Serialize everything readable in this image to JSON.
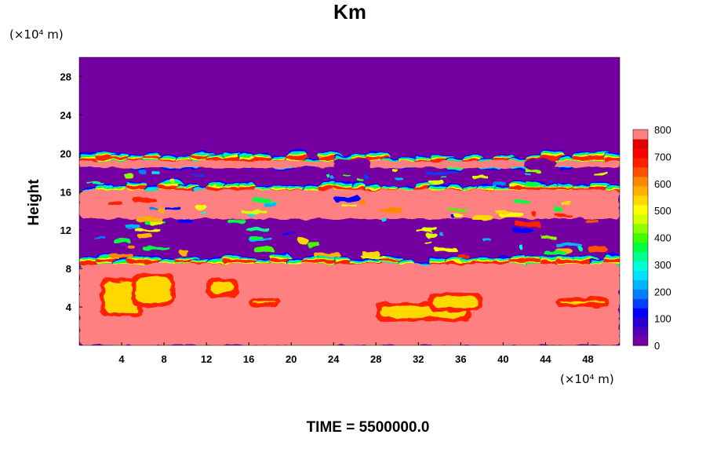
{
  "chart_data": {
    "type": "heatmap",
    "title": "Km",
    "ylabel": "Height",
    "x_unit": "(×10⁴ m)",
    "y_unit": "(×10⁴ m)",
    "footer": "TIME = 5500000.0",
    "xlim": [
      0,
      51
    ],
    "ylim": [
      0,
      30
    ],
    "x_ticks": [
      4,
      8,
      12,
      16,
      20,
      24,
      28,
      32,
      36,
      40,
      44,
      48
    ],
    "y_ticks": [
      4,
      8,
      12,
      16,
      20,
      24,
      28
    ],
    "colorbar": {
      "min": 0,
      "max": 800,
      "ticks": [
        0,
        100,
        200,
        300,
        400,
        500,
        600,
        700,
        800
      ],
      "colors": [
        "#7400a2",
        "#5000b8",
        "#2a00d0",
        "#0000ff",
        "#0040ff",
        "#0080ff",
        "#00b4ff",
        "#00e0ff",
        "#00ffd8",
        "#00ff90",
        "#00ff40",
        "#40ff00",
        "#90ff00",
        "#d8ff00",
        "#ffff00",
        "#ffd800",
        "#ffb000",
        "#ff8800",
        "#ff5000",
        "#ff2000",
        "#ff0000",
        "#e00000",
        "#ff8080"
      ]
    },
    "field_description": {
      "background_value": 0,
      "saturated_regions": [
        {
          "from_y": 0,
          "to_y": 8.5,
          "value": 800
        },
        {
          "from_y": 13.2,
          "to_y": 16.2,
          "value": 800
        },
        {
          "from_y": 18.5,
          "to_y": 19.2,
          "value": 800
        }
      ]
    }
  }
}
